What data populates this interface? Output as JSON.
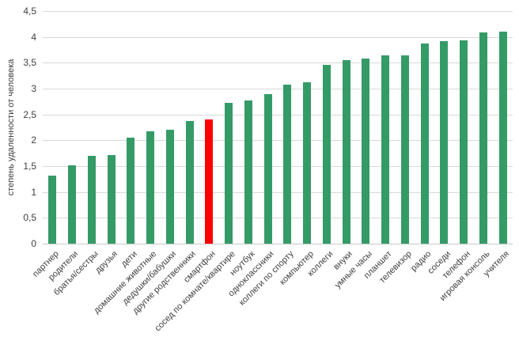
{
  "chart_data": {
    "type": "bar",
    "title": "",
    "xlabel": "",
    "ylabel": "степень удаленности от человека",
    "ylim": [
      0,
      4.5
    ],
    "grid": true,
    "legend_position": "none",
    "ytick_values": [
      0,
      0.5,
      1,
      1.5,
      2,
      2.5,
      3,
      3.5,
      4,
      4.5
    ],
    "ytick_labels": [
      "0",
      "0,5",
      "1",
      "1,5",
      "2",
      "2,5",
      "3",
      "3,5",
      "4",
      "4,5"
    ],
    "categories": [
      "партнер",
      "родители",
      "братья/сестры",
      "друзья",
      "дети",
      "домашние животные",
      "дедушки/бабушки",
      "другие родственники",
      "смартфон",
      "сосед по комнате/квартире",
      "ноутбук",
      "одноклассники",
      "коллеги по спорту",
      "компьютер",
      "коллеги",
      "внуки",
      "умные часы",
      "планшет",
      "телевизор",
      "радио",
      "соседи",
      "телефон",
      "игровая консоль",
      "учителя"
    ],
    "values": [
      1.31,
      1.51,
      1.7,
      1.72,
      2.05,
      2.18,
      2.2,
      2.37,
      2.41,
      2.72,
      2.77,
      2.9,
      3.08,
      3.12,
      3.46,
      3.55,
      3.58,
      3.64,
      3.65,
      3.87,
      3.92,
      3.94,
      4.09,
      4.1
    ],
    "highlight_index": 8,
    "highlight_category": "смартфон"
  },
  "colors": {
    "bar_default": "#349b67",
    "bar_highlight": "#ff0000",
    "gridline": "#d9d9d9",
    "axis_line": "#c9c9c9",
    "text": "#404040",
    "background": "#ffffff"
  }
}
